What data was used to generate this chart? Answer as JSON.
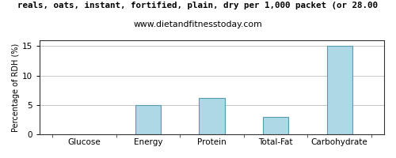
{
  "title_line1": "reals, oats, instant, fortified, plain, dry per 1,000 packet (or 28.00",
  "title_line2": "www.dietandfitnesstoday.com",
  "ylabel": "Percentage of RDH (%)",
  "categories": [
    "Glucose",
    "Energy",
    "Protein",
    "Total-Fat",
    "Carbohydrate"
  ],
  "values": [
    0.0,
    5.0,
    6.2,
    3.0,
    15.0
  ],
  "bar_color": "#add8e6",
  "bar_edgecolor": "#5a9ab0",
  "ylim": [
    0,
    16
  ],
  "yticks": [
    0,
    5,
    10,
    15
  ],
  "background_color": "#ffffff",
  "plot_bg_color": "#ffffff",
  "title_fontsize": 7.8,
  "subtitle_fontsize": 7.8,
  "ylabel_fontsize": 7.0,
  "tick_fontsize": 7.5,
  "grid_color": "#c8c8c8",
  "title_color": "#000000",
  "spine_color": "#333333"
}
